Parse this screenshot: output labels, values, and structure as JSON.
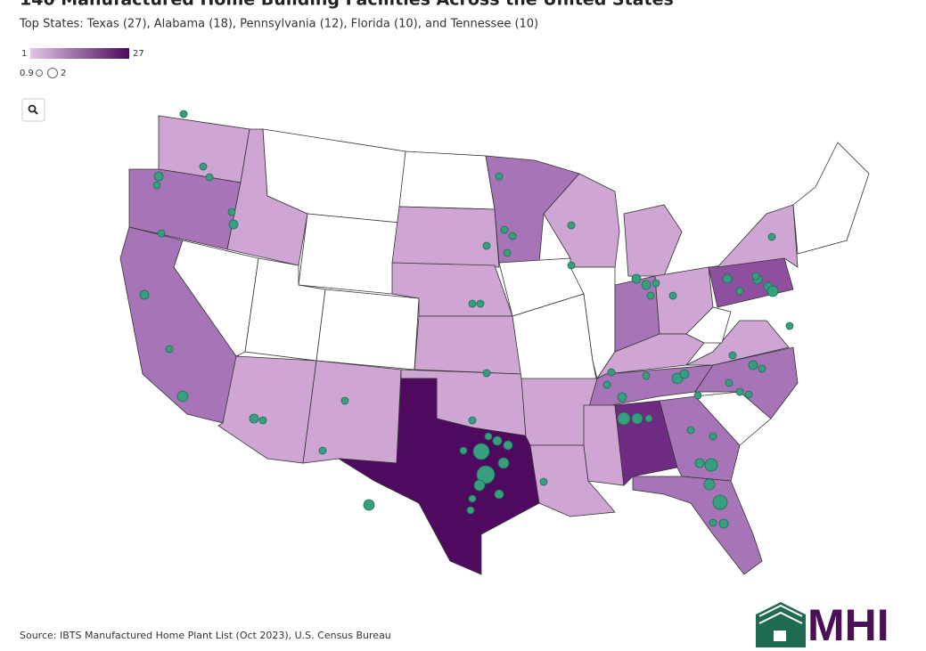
{
  "header": {
    "title": "140 Manufactured Home Building Facilities Across the United States",
    "subtitle": "Top States: Texas (27), Alabama (18), Pennsylvania (12), Florida (10), and Tennessee (10)"
  },
  "legend": {
    "color": {
      "min": 1,
      "max": 27
    },
    "size": {
      "min": 0.9,
      "max": 2
    }
  },
  "source": "Source: IBTS Manufactured Home Plant List (Oct 2023), U.S. Census Bureau",
  "logo": "MHI"
}
